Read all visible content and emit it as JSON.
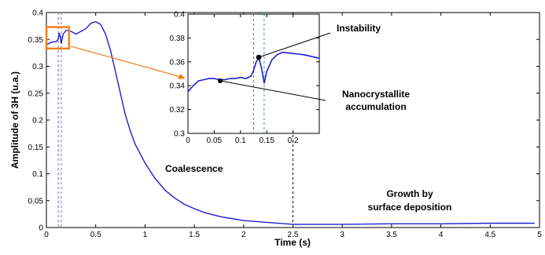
{
  "chart_data": [
    {
      "type": "line",
      "xlabel": "Time (s)",
      "ylabel": "Amplitude of 3H (u.a.)",
      "xlim": [
        0,
        5
      ],
      "ylim": [
        0,
        0.4
      ],
      "x_ticks": [
        "0",
        "0.5",
        "1",
        "1.5",
        "2",
        "2.5",
        "3",
        "3.5",
        "4",
        "4.5",
        "5"
      ],
      "y_ticks": [
        "0",
        "0.05",
        "0.1",
        "0.15",
        "0.2",
        "0.25",
        "0.3",
        "0.35",
        "0.4"
      ],
      "grid": false,
      "series": [
        {
          "color": "#1f1fd0",
          "x": [
            0.0,
            0.05,
            0.1,
            0.12,
            0.13,
            0.14,
            0.15,
            0.17,
            0.2,
            0.25,
            0.3,
            0.4,
            0.45,
            0.5,
            0.55,
            0.6,
            0.65,
            0.7,
            0.75,
            0.8,
            0.85,
            0.9,
            1.0,
            1.1,
            1.2,
            1.3,
            1.4,
            1.5,
            1.6,
            1.7,
            1.8,
            1.9,
            2.0,
            2.2,
            2.5,
            3.0,
            3.5,
            4.0,
            4.5,
            4.95
          ],
          "y": [
            0.34,
            0.345,
            0.346,
            0.35,
            0.362,
            0.355,
            0.342,
            0.36,
            0.367,
            0.365,
            0.36,
            0.37,
            0.38,
            0.383,
            0.378,
            0.36,
            0.33,
            0.29,
            0.25,
            0.21,
            0.18,
            0.155,
            0.12,
            0.092,
            0.07,
            0.055,
            0.043,
            0.035,
            0.028,
            0.023,
            0.019,
            0.016,
            0.013,
            0.01,
            0.006,
            0.006,
            0.007,
            0.007,
            0.008,
            0.008
          ]
        }
      ],
      "vlines": [
        {
          "x": 0.12,
          "color": "#d04080"
        },
        {
          "x": 0.15,
          "color": "#20a0b0"
        },
        {
          "x": 2.5,
          "color": "#000000"
        }
      ],
      "annotations": [
        "Coalescence",
        "Growth by",
        "surface deposition"
      ],
      "highlight_box": {
        "x": [
          0,
          0.23
        ],
        "y": [
          0.333,
          0.373
        ],
        "color": "#f08020"
      }
    },
    {
      "type": "line",
      "inset": true,
      "xlim": [
        0,
        0.25
      ],
      "ylim": [
        0.3,
        0.4
      ],
      "x_ticks": [
        "0",
        "0.05",
        "0.1",
        "0.15",
        "0.2"
      ],
      "y_ticks": [
        "0.3",
        "0.32",
        "0.34",
        "0.36",
        "0.38",
        "0.4"
      ],
      "grid": false,
      "series": [
        {
          "color": "#1f1fd0",
          "x": [
            0.0,
            0.01,
            0.02,
            0.03,
            0.04,
            0.05,
            0.06,
            0.07,
            0.08,
            0.09,
            0.1,
            0.11,
            0.12,
            0.125,
            0.13,
            0.135,
            0.14,
            0.145,
            0.15,
            0.16,
            0.17,
            0.18,
            0.2,
            0.22,
            0.24,
            0.25
          ],
          "y": [
            0.335,
            0.34,
            0.344,
            0.345,
            0.346,
            0.346,
            0.345,
            0.345,
            0.346,
            0.346,
            0.347,
            0.346,
            0.348,
            0.353,
            0.36,
            0.363,
            0.355,
            0.342,
            0.352,
            0.362,
            0.366,
            0.368,
            0.367,
            0.366,
            0.364,
            0.363
          ]
        }
      ],
      "vlines": [
        {
          "x": 0.125,
          "color": "#d04080"
        },
        {
          "x": 0.145,
          "color": "#20a0b0"
        }
      ],
      "annotations": [
        "Instability",
        "Nanocrystallite",
        "accumulation"
      ]
    }
  ]
}
